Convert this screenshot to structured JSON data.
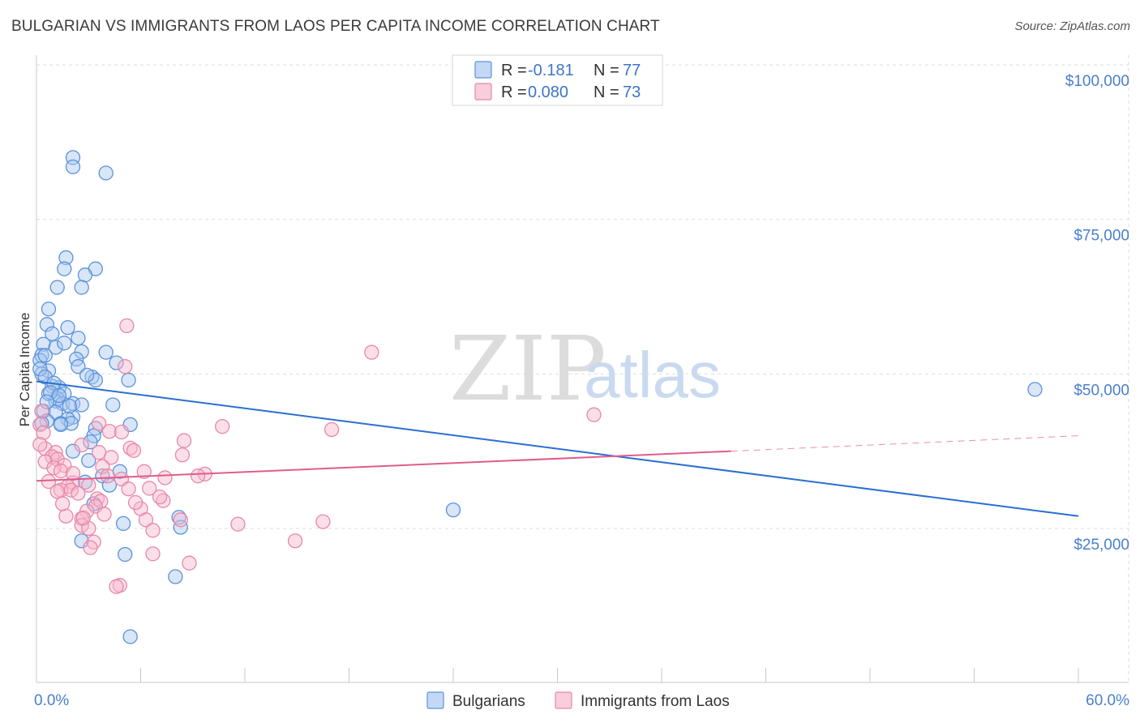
{
  "title": "BULGARIAN VS IMMIGRANTS FROM LAOS PER CAPITA INCOME CORRELATION CHART",
  "source": "Source: ZipAtlas.com",
  "watermark": {
    "zip": "ZIP",
    "atlas": "atlas"
  },
  "colors": {
    "blue_fill": "#a9c8f0",
    "blue_stroke": "#5b92dc",
    "blue_line": "#2a6fd0",
    "pink_fill": "#f6b8cc",
    "pink_stroke": "#e887a8",
    "pink_line": "#e05c8c",
    "grid": "#dedede",
    "tick_text": "#4a7fcc"
  },
  "legend": {
    "rows": [
      {
        "r_label": "R = ",
        "r_value": "-0.181",
        "n_label": "N = ",
        "n_value": "77"
      },
      {
        "r_label": "R = ",
        "r_value": "0.080",
        "n_label": "N = ",
        "n_value": "73"
      }
    ]
  },
  "chart_data": {
    "type": "scatter",
    "title": "BULGARIAN VS IMMIGRANTS FROM LAOS PER CAPITA INCOME CORRELATION CHART",
    "xlabel": "",
    "ylabel": "Per Capita Income",
    "xlim": [
      0,
      60
    ],
    "ylim": [
      0,
      105000
    ],
    "x_tick_labels": [
      "0.0%",
      "60.0%"
    ],
    "y_ticks": [
      25000,
      50000,
      75000,
      100000
    ],
    "y_tick_labels": [
      "$25,000",
      "$50,000",
      "$75,000",
      "$100,000"
    ],
    "grid": true,
    "legend_position": "top-center",
    "series": [
      {
        "name": "Bulgarians",
        "points": [
          [
            2.1,
            85000
          ],
          [
            2.1,
            83500
          ],
          [
            4.0,
            82500
          ],
          [
            1.7,
            68800
          ],
          [
            1.6,
            67000
          ],
          [
            3.4,
            67000
          ],
          [
            2.8,
            66000
          ],
          [
            1.2,
            64000
          ],
          [
            2.6,
            64000
          ],
          [
            0.7,
            60500
          ],
          [
            0.6,
            58000
          ],
          [
            1.8,
            57500
          ],
          [
            0.9,
            56500
          ],
          [
            2.4,
            55800
          ],
          [
            0.4,
            54800
          ],
          [
            0.3,
            53000
          ],
          [
            1.1,
            54300
          ],
          [
            0.2,
            52200
          ],
          [
            2.6,
            53600
          ],
          [
            4.0,
            53500
          ],
          [
            2.3,
            52400
          ],
          [
            4.6,
            51800
          ],
          [
            2.4,
            51200
          ],
          [
            0.7,
            50500
          ],
          [
            0.3,
            50000
          ],
          [
            3.2,
            49500
          ],
          [
            3.4,
            49000
          ],
          [
            5.3,
            49000
          ],
          [
            1.3,
            47800
          ],
          [
            0.9,
            48000
          ],
          [
            0.7,
            46800
          ],
          [
            1.6,
            46800
          ],
          [
            1.2,
            46000
          ],
          [
            1.1,
            45600
          ],
          [
            1.5,
            45200
          ],
          [
            2.1,
            45200
          ],
          [
            2.6,
            45000
          ],
          [
            0.4,
            44000
          ],
          [
            1.1,
            43800
          ],
          [
            2.1,
            43000
          ],
          [
            1.8,
            42700
          ],
          [
            0.6,
            42400
          ],
          [
            1.4,
            42000
          ],
          [
            2.0,
            42000
          ],
          [
            1.4,
            41800
          ],
          [
            5.4,
            41800
          ],
          [
            3.4,
            41200
          ],
          [
            3.3,
            40000
          ],
          [
            3.1,
            39000
          ],
          [
            2.1,
            37500
          ],
          [
            3.0,
            36000
          ],
          [
            4.8,
            34200
          ],
          [
            3.8,
            33500
          ],
          [
            2.8,
            32500
          ],
          [
            4.2,
            32000
          ],
          [
            3.3,
            29000
          ],
          [
            24.0,
            28000
          ],
          [
            8.2,
            26800
          ],
          [
            5.0,
            25800
          ],
          [
            8.3,
            25200
          ],
          [
            2.6,
            23000
          ],
          [
            5.1,
            20800
          ],
          [
            8.0,
            17200
          ],
          [
            5.4,
            7500
          ],
          [
            57.5,
            47500
          ],
          [
            0.2,
            50800
          ],
          [
            0.5,
            49500
          ],
          [
            1.0,
            48500
          ],
          [
            0.8,
            47000
          ],
          [
            1.9,
            44800
          ],
          [
            0.3,
            42000
          ],
          [
            0.5,
            53000
          ],
          [
            1.6,
            55000
          ],
          [
            2.9,
            49800
          ],
          [
            1.3,
            46500
          ],
          [
            0.6,
            45500
          ],
          [
            4.4,
            45000
          ]
        ]
      },
      {
        "name": "Immigrants from Laos",
        "points": [
          [
            5.2,
            57800
          ],
          [
            19.3,
            53500
          ],
          [
            32.1,
            43400
          ],
          [
            5.1,
            51200
          ],
          [
            0.3,
            44000
          ],
          [
            0.2,
            41800
          ],
          [
            0.4,
            40500
          ],
          [
            10.7,
            41500
          ],
          [
            17.0,
            41000
          ],
          [
            3.6,
            42000
          ],
          [
            4.2,
            40700
          ],
          [
            4.9,
            40600
          ],
          [
            8.5,
            39200
          ],
          [
            2.6,
            38500
          ],
          [
            5.4,
            38000
          ],
          [
            0.5,
            37900
          ],
          [
            1.1,
            37300
          ],
          [
            3.6,
            37300
          ],
          [
            5.6,
            37600
          ],
          [
            8.4,
            36900
          ],
          [
            0.9,
            36600
          ],
          [
            1.2,
            36200
          ],
          [
            4.3,
            36500
          ],
          [
            0.5,
            35800
          ],
          [
            1.6,
            35200
          ],
          [
            3.8,
            35000
          ],
          [
            1.0,
            34800
          ],
          [
            6.2,
            34200
          ],
          [
            9.7,
            33800
          ],
          [
            7.4,
            33200
          ],
          [
            4.9,
            33000
          ],
          [
            2.1,
            32400
          ],
          [
            3.0,
            32000
          ],
          [
            1.8,
            31800
          ],
          [
            1.4,
            31200
          ],
          [
            2.0,
            31200
          ],
          [
            5.3,
            31400
          ],
          [
            6.5,
            31500
          ],
          [
            1.2,
            31000
          ],
          [
            3.5,
            29800
          ],
          [
            3.7,
            29400
          ],
          [
            7.3,
            29500
          ],
          [
            3.4,
            28600
          ],
          [
            6.0,
            28200
          ],
          [
            2.9,
            27800
          ],
          [
            1.7,
            27000
          ],
          [
            2.6,
            26600
          ],
          [
            6.3,
            26400
          ],
          [
            8.3,
            26400
          ],
          [
            11.6,
            25700
          ],
          [
            16.5,
            26100
          ],
          [
            2.6,
            25500
          ],
          [
            3.0,
            25000
          ],
          [
            6.7,
            24700
          ],
          [
            3.3,
            22800
          ],
          [
            14.9,
            23000
          ],
          [
            3.1,
            21900
          ],
          [
            6.7,
            20900
          ],
          [
            8.8,
            19400
          ],
          [
            4.8,
            15800
          ],
          [
            4.6,
            15600
          ],
          [
            0.2,
            38600
          ],
          [
            1.4,
            34300
          ],
          [
            2.1,
            33900
          ],
          [
            0.7,
            32600
          ],
          [
            4.1,
            33500
          ],
          [
            2.4,
            30700
          ],
          [
            5.7,
            29200
          ],
          [
            1.5,
            29000
          ],
          [
            3.9,
            27300
          ],
          [
            7.1,
            30100
          ],
          [
            2.7,
            26700
          ],
          [
            9.3,
            33500
          ]
        ]
      }
    ],
    "trendlines": [
      {
        "series": "Bulgarians",
        "x": [
          0,
          60
        ],
        "y": [
          48800,
          27000
        ]
      },
      {
        "series": "Immigrants from Laos",
        "x": [
          0,
          40
        ],
        "y": [
          32700,
          37500
        ],
        "dashed_extension_x": [
          40,
          60
        ],
        "dashed_extension_y": [
          37500,
          40000
        ]
      }
    ]
  }
}
